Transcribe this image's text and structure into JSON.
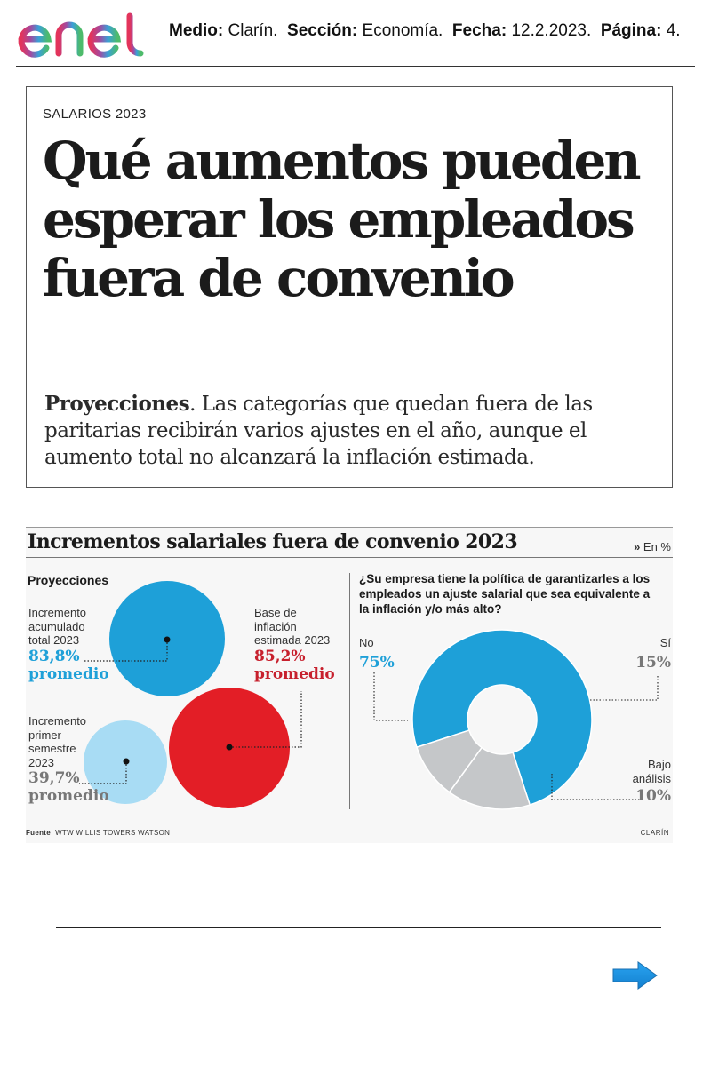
{
  "header": {
    "logo_text": "enel",
    "medio_label": "Medio:",
    "medio_value": "Clarín.",
    "seccion_label": "Sección:",
    "seccion_value": "Economía.",
    "fecha_label": "Fecha:",
    "fecha_value": "12.2.2023.",
    "pagina_label": "Página:",
    "pagina_value": "4."
  },
  "article": {
    "kicker": "SALARIOS 2023",
    "headline": "Qué aumentos pueden esperar los empleados fuera de convenio",
    "lede_lead": "Proyecciones",
    "lede_text": ". Las categorías que quedan fuera de las paritarias recibirán varios ajustes en el año, aunque el aumento total no alcanzará la inflación estimada."
  },
  "infographic": {
    "title": "Incrementos salariales fuera de convenio 2023",
    "unit_marker": "»",
    "unit": "En %",
    "source_label": "Fuente",
    "source_value": "WTW WILLIS TOWERS WATSON",
    "credit": "CLARÍN",
    "colors": {
      "blue": "#1ea0d8",
      "red": "#e31e26",
      "light_blue": "#a8dcf4",
      "grey": "#c5c7c9"
    }
  },
  "chart_data": [
    {
      "type": "bubble",
      "title": "Proyecciones",
      "items": [
        {
          "label_lines": [
            "Incremento",
            "acumulado",
            "total 2023"
          ],
          "value": 83.8,
          "value_label": "83,8%",
          "note": "promedio",
          "color": "#1ea0d8"
        },
        {
          "label_lines": [
            "Base de",
            "inflación",
            "estimada 2023"
          ],
          "value": 85.2,
          "value_label": "85,2%",
          "note": "promedio",
          "color": "#e31e26"
        },
        {
          "label_lines": [
            "Incremento",
            "primer",
            "semestre",
            "2023"
          ],
          "value": 39.7,
          "value_label": "39,7%",
          "note": "promedio",
          "color": "#a8dcf4"
        }
      ]
    },
    {
      "type": "pie",
      "title": "¿Su empresa tiene la política de garantizarles a los empleados un ajuste salarial que sea equivalente a la inflación y/o más alto?",
      "slices": [
        {
          "label": "No",
          "value": 75,
          "value_label": "75%",
          "color": "#1ea0d8"
        },
        {
          "label": "Sí",
          "value": 15,
          "value_label": "15%",
          "color": "#c5c7c9"
        },
        {
          "label_lines": [
            "Bajo",
            "análisis"
          ],
          "value": 10,
          "value_label": "10%",
          "color": "#c5c7c9"
        }
      ]
    }
  ]
}
